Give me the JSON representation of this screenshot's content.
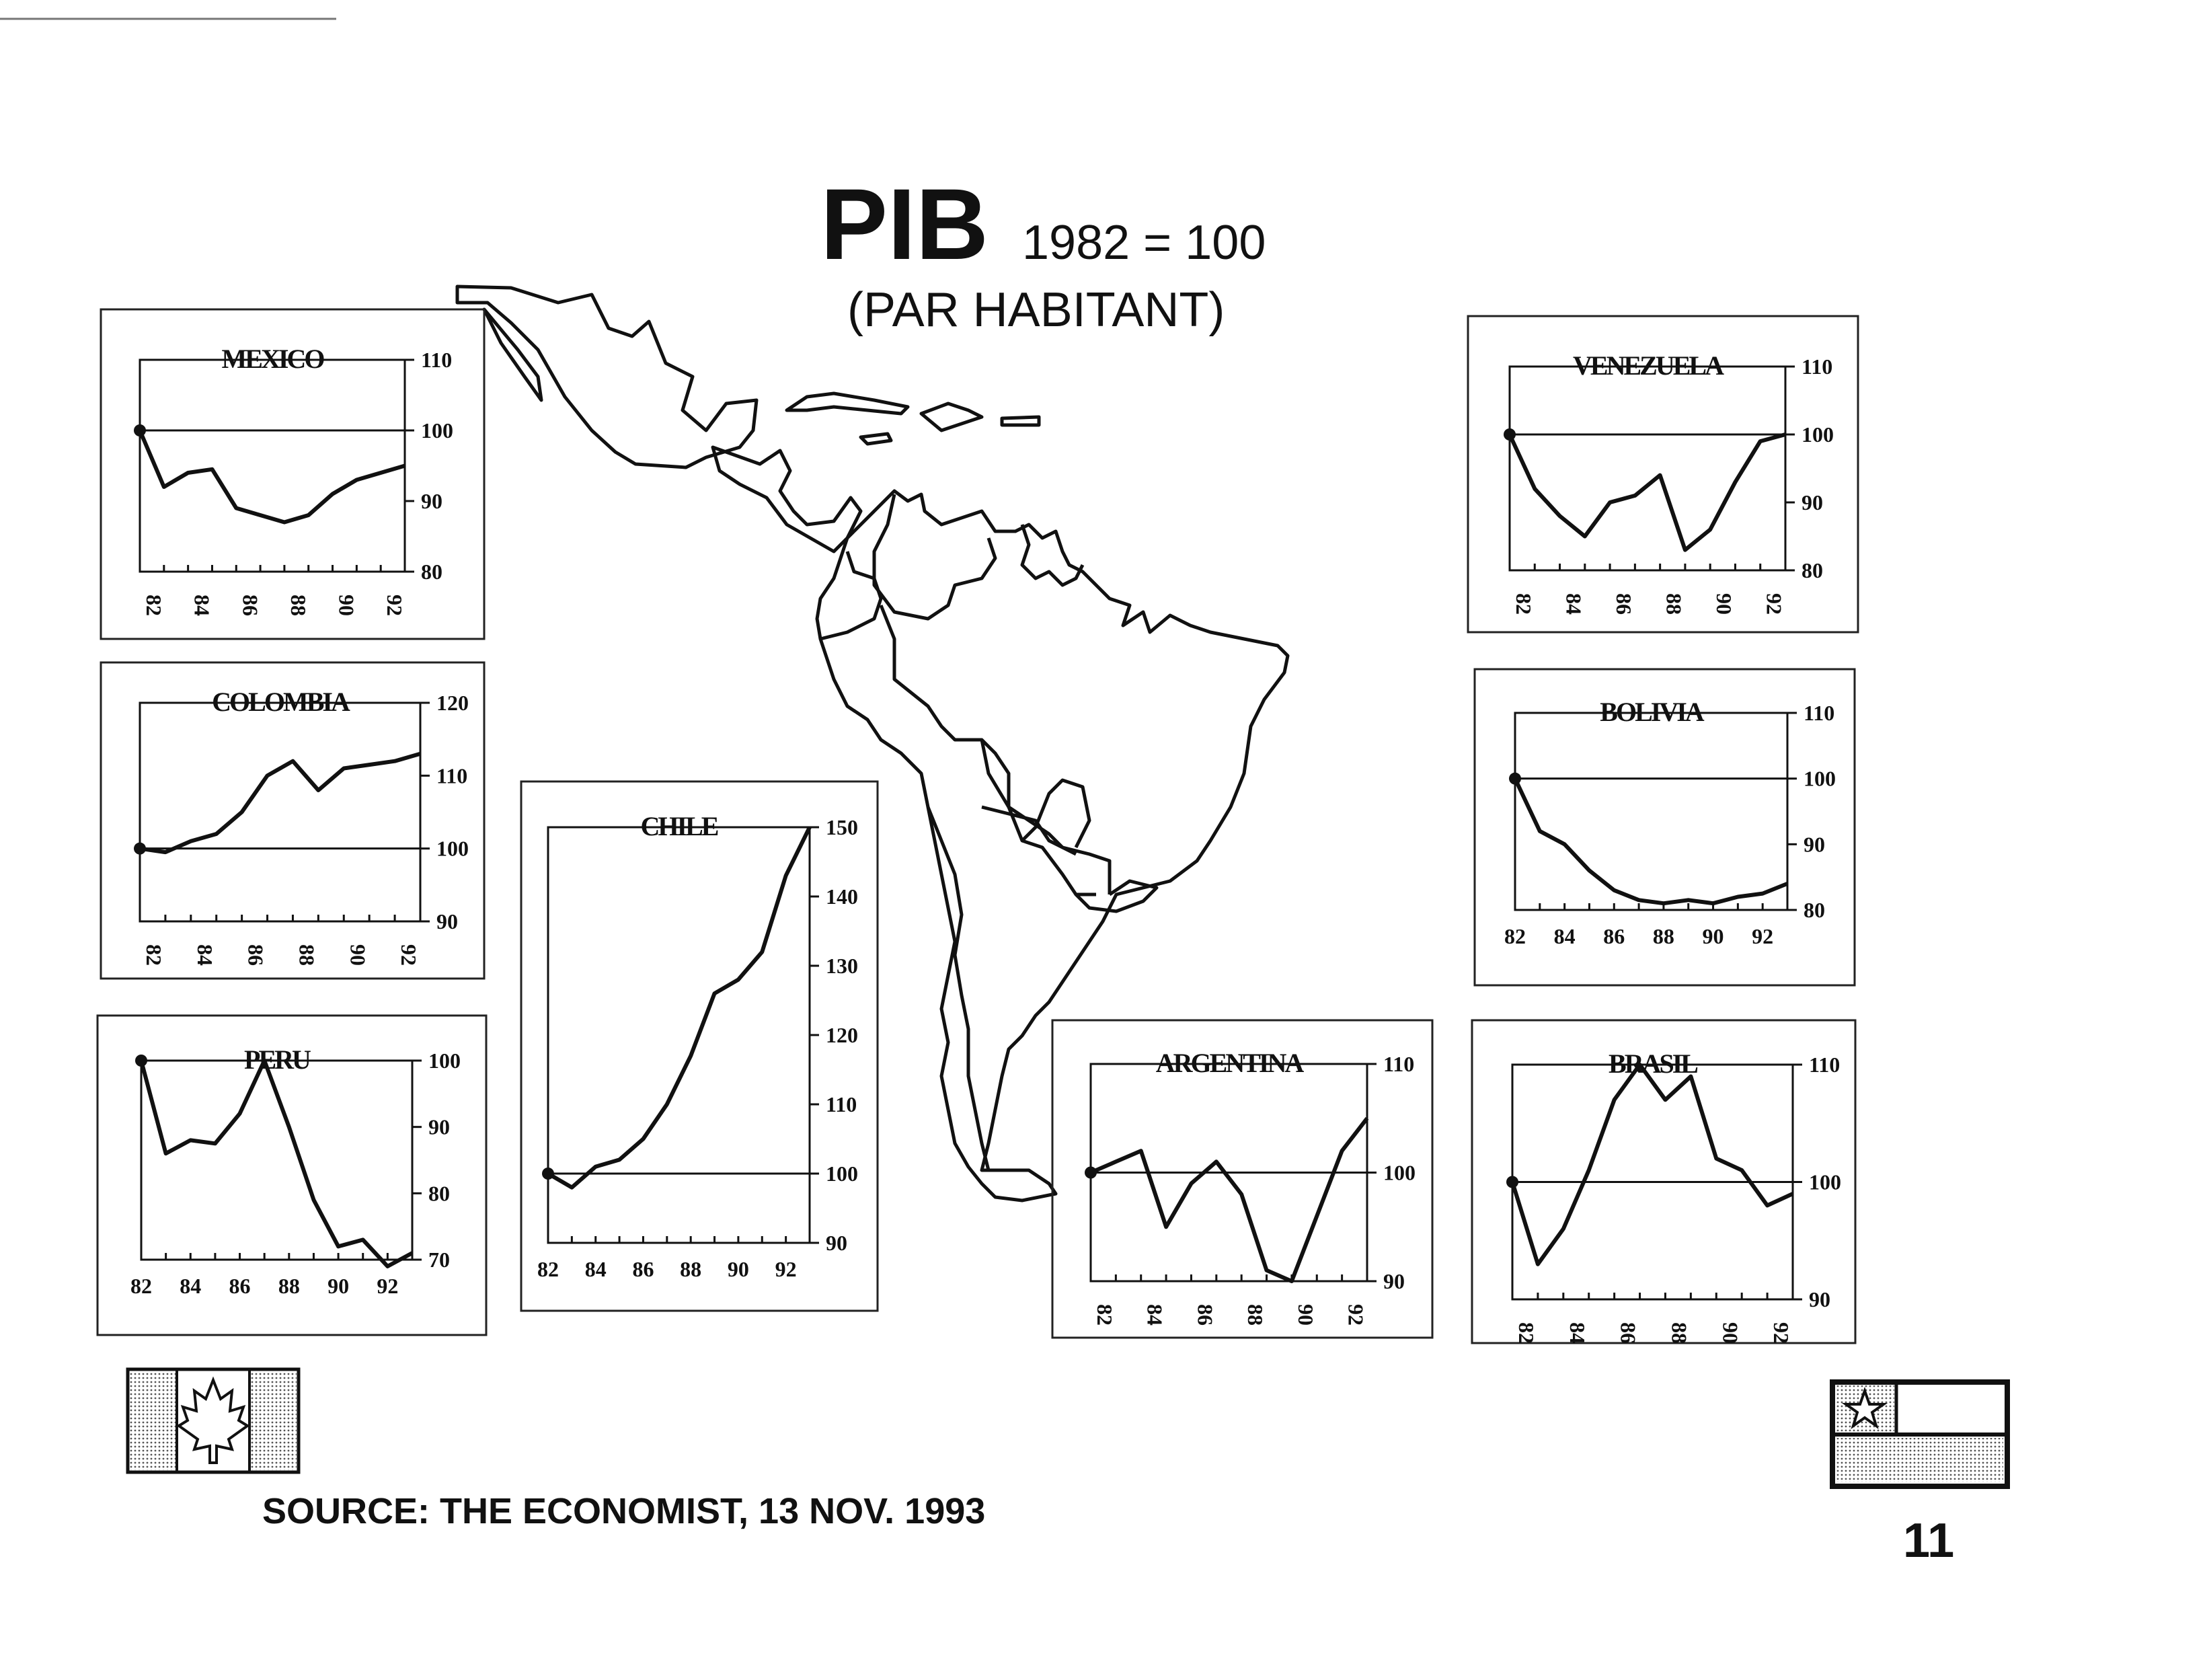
{
  "title": "PIB",
  "subtitle": "1982 = 100",
  "subtitle2": "(PAR HABITANT)",
  "source": "SOURCE: THE ECONOMIST, 13 NOV.  1993",
  "page_number": "11",
  "chart_data": [
    {
      "type": "line",
      "title": "MEXICO",
      "x": [
        82,
        83,
        84,
        85,
        86,
        87,
        88,
        89,
        90,
        91,
        92,
        93
      ],
      "values": [
        100,
        92,
        94,
        94.5,
        89,
        88,
        87,
        88,
        91,
        93,
        94,
        95
      ],
      "ylim": [
        80,
        110
      ],
      "yticks": [
        "110",
        "100",
        "90",
        "80"
      ],
      "xticks": [
        "82",
        "84",
        "86",
        "88",
        "90",
        "92"
      ],
      "xtick_rotated": true,
      "reference": 100
    },
    {
      "type": "line",
      "title": "COLOMBIA",
      "x": [
        82,
        83,
        84,
        85,
        86,
        87,
        88,
        89,
        90,
        91,
        92,
        93
      ],
      "values": [
        100,
        99.5,
        101,
        102,
        105,
        110,
        112,
        108,
        111,
        111.5,
        112,
        113
      ],
      "ylim": [
        90,
        120
      ],
      "yticks": [
        "120",
        "110",
        "100",
        "90"
      ],
      "xticks": [
        "82",
        "84",
        "86",
        "88",
        "90",
        "92"
      ],
      "xtick_rotated": true,
      "reference": 100
    },
    {
      "type": "line",
      "title": "PERU",
      "x": [
        82,
        83,
        84,
        85,
        86,
        87,
        88,
        89,
        90,
        91,
        92,
        93
      ],
      "values": [
        100,
        86,
        88,
        87.5,
        92,
        100,
        90,
        79,
        72,
        73,
        69,
        71
      ],
      "ylim": [
        70,
        100
      ],
      "yticks": [
        "100",
        "90",
        "80",
        "70"
      ],
      "xticks": [
        "82",
        "84",
        "86",
        "88",
        "90",
        "92"
      ],
      "xtick_rotated": false,
      "reference": 100
    },
    {
      "type": "line",
      "title": "CHILE",
      "x": [
        82,
        83,
        84,
        85,
        86,
        87,
        88,
        89,
        90,
        91,
        92,
        93
      ],
      "values": [
        100,
        98,
        101,
        102,
        105,
        110,
        117,
        126,
        128,
        132,
        143,
        150
      ],
      "ylim": [
        90,
        150
      ],
      "yticks": [
        "150",
        "140",
        "130",
        "120",
        "110",
        "100",
        "90"
      ],
      "xticks": [
        "82",
        "84",
        "86",
        "88",
        "90",
        "92"
      ],
      "xtick_rotated": false,
      "reference": 100
    },
    {
      "type": "line",
      "title": "ARGENTINA",
      "x": [
        82,
        83,
        84,
        85,
        86,
        87,
        88,
        89,
        90,
        91,
        92,
        93
      ],
      "values": [
        100,
        101,
        102,
        95,
        99,
        101,
        98,
        91,
        90,
        96,
        102,
        105
      ],
      "ylim": [
        90,
        110
      ],
      "yticks": [
        "110",
        "100",
        "90"
      ],
      "xticks": [
        "82",
        "84",
        "86",
        "88",
        "90",
        "92"
      ],
      "xtick_rotated": true,
      "reference": 100
    },
    {
      "type": "line",
      "title": "VENEZUELA",
      "x": [
        82,
        83,
        84,
        85,
        86,
        87,
        88,
        89,
        90,
        91,
        92,
        93
      ],
      "values": [
        100,
        92,
        88,
        85,
        90,
        91,
        94,
        83,
        86,
        93,
        99,
        100
      ],
      "ylim": [
        80,
        110
      ],
      "yticks": [
        "110",
        "100",
        "90",
        "80"
      ],
      "xticks": [
        "82",
        "84",
        "86",
        "88",
        "90",
        "92"
      ],
      "xtick_rotated": true,
      "reference": 100
    },
    {
      "type": "line",
      "title": "BOLIVIA",
      "x": [
        82,
        83,
        84,
        85,
        86,
        87,
        88,
        89,
        90,
        91,
        92,
        93
      ],
      "values": [
        100,
        92,
        90,
        86,
        83,
        81.5,
        81,
        81.5,
        81,
        82,
        82.5,
        84
      ],
      "ylim": [
        80,
        110
      ],
      "yticks": [
        "110",
        "100",
        "90",
        "80"
      ],
      "xticks": [
        "82",
        "84",
        "86",
        "88",
        "90",
        "92"
      ],
      "xtick_rotated": false,
      "reference": 100
    },
    {
      "type": "line",
      "title": "BRASIL",
      "x": [
        82,
        83,
        84,
        85,
        86,
        87,
        88,
        89,
        90,
        91,
        92,
        93
      ],
      "values": [
        100,
        93,
        96,
        101,
        107,
        110,
        107,
        109,
        102,
        101,
        98,
        99
      ],
      "ylim": [
        90,
        110
      ],
      "yticks": [
        "110",
        "100",
        "90"
      ],
      "xticks": [
        "82",
        "84",
        "86",
        "88",
        "90",
        "92"
      ],
      "xtick_rotated": true,
      "reference": 100
    }
  ]
}
